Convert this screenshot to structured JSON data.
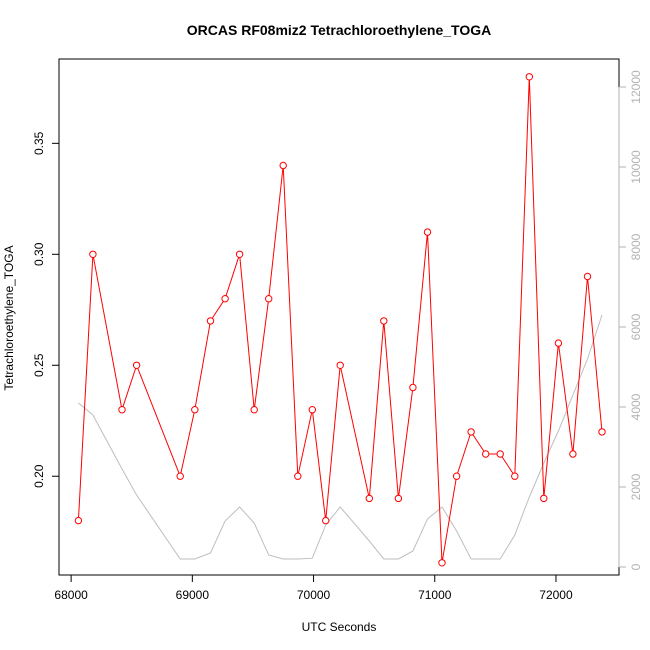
{
  "chart_data": {
    "type": "line",
    "title": "ORCAS RF08miz2 Tetrachloroethylene_TOGA",
    "xlabel": "UTC Seconds",
    "ylabel": "Tetrachloroethylene_TOGA",
    "xlim": [
      67900,
      72520
    ],
    "ylim": [
      0.1555,
      0.388
    ],
    "y2lim": [
      -200,
      12700
    ],
    "x_ticks": [
      68000,
      69000,
      70000,
      71000,
      72000
    ],
    "y_ticks": [
      0.2,
      0.25,
      0.3,
      0.35
    ],
    "y_tick_labels": [
      "0.20",
      "0.25",
      "0.30",
      "0.35"
    ],
    "y2_ticks": [
      0,
      2000,
      4000,
      6000,
      8000,
      10000,
      12000
    ],
    "colors": {
      "primary": "#ff0000",
      "secondary": "#bebebe",
      "axis": "#000000",
      "right_axis": "#b3b3b3"
    },
    "series": [
      {
        "axis": "left",
        "color": "#ff0000",
        "markers": "open-circle",
        "points": [
          [
            68060,
            0.18
          ],
          [
            68180,
            0.3
          ],
          [
            68420,
            0.23
          ],
          [
            68540,
            0.25
          ],
          [
            68900,
            0.2
          ],
          [
            69020,
            0.23
          ],
          [
            69150,
            0.27
          ],
          [
            69270,
            0.28
          ],
          [
            69390,
            0.3
          ],
          [
            69510,
            0.23
          ],
          [
            69630,
            0.28
          ],
          [
            69750,
            0.34
          ],
          [
            69870,
            0.2
          ],
          [
            69990,
            0.23
          ],
          [
            70100,
            0.18
          ],
          [
            70220,
            0.25
          ],
          [
            70460,
            0.19
          ],
          [
            70580,
            0.27
          ],
          [
            70700,
            0.19
          ],
          [
            70820,
            0.24
          ],
          [
            70940,
            0.31
          ],
          [
            71060,
            0.161
          ],
          [
            71180,
            0.2
          ],
          [
            71300,
            0.22
          ],
          [
            71420,
            0.21
          ],
          [
            71540,
            0.21
          ],
          [
            71660,
            0.2
          ],
          [
            71780,
            0.38
          ],
          [
            71900,
            0.19
          ],
          [
            72020,
            0.26
          ],
          [
            72140,
            0.21
          ],
          [
            72260,
            0.29
          ],
          [
            72380,
            0.22
          ]
        ]
      },
      {
        "axis": "right",
        "color": "#bebebe",
        "markers": "none",
        "points": [
          [
            68060,
            4100
          ],
          [
            68180,
            3800
          ],
          [
            68420,
            2450
          ],
          [
            68540,
            1800
          ],
          [
            68900,
            200
          ],
          [
            69020,
            200
          ],
          [
            69150,
            350
          ],
          [
            69270,
            1150
          ],
          [
            69390,
            1500
          ],
          [
            69510,
            1100
          ],
          [
            69630,
            300
          ],
          [
            69750,
            200
          ],
          [
            69870,
            200
          ],
          [
            69990,
            220
          ],
          [
            70100,
            1050
          ],
          [
            70220,
            1500
          ],
          [
            70460,
            650
          ],
          [
            70580,
            200
          ],
          [
            70700,
            200
          ],
          [
            70820,
            400
          ],
          [
            70940,
            1200
          ],
          [
            71060,
            1500
          ],
          [
            71180,
            900
          ],
          [
            71300,
            200
          ],
          [
            71420,
            200
          ],
          [
            71540,
            200
          ],
          [
            71660,
            800
          ],
          [
            71780,
            1750
          ],
          [
            71900,
            2600
          ],
          [
            72020,
            3400
          ],
          [
            72140,
            4300
          ],
          [
            72260,
            5200
          ],
          [
            72380,
            6300
          ]
        ]
      }
    ]
  }
}
